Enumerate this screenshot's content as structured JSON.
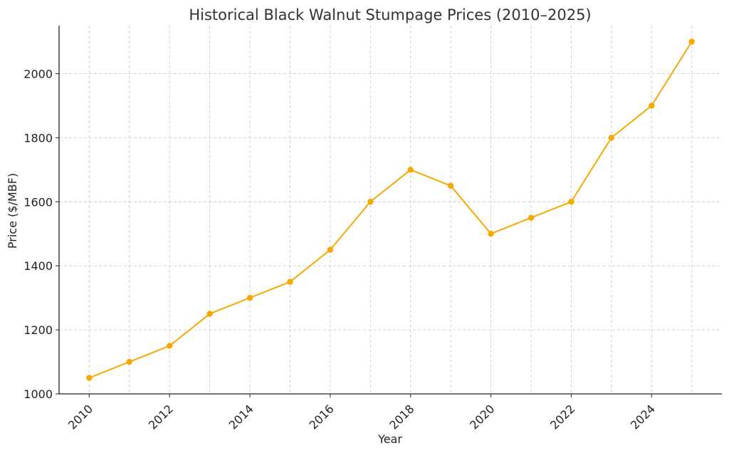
{
  "chart_data": {
    "type": "line",
    "title": "Historical Black Walnut Stumpage Prices (2010–2025)",
    "xlabel": "Year",
    "ylabel": "Price ($/MBF)",
    "x": [
      2010,
      2011,
      2012,
      2013,
      2014,
      2015,
      2016,
      2017,
      2018,
      2019,
      2020,
      2021,
      2022,
      2023,
      2024,
      2025
    ],
    "series": [
      {
        "values": [
          1050,
          1100,
          1150,
          1250,
          1300,
          1350,
          1450,
          1600,
          1700,
          1650,
          1500,
          1550,
          1600,
          1800,
          1900,
          2100
        ],
        "color": "#f5a800"
      }
    ],
    "xticks": [
      "2010",
      "2012",
      "2014",
      "2016",
      "2018",
      "2020",
      "2022",
      "2024"
    ],
    "yticks": [
      "1000",
      "1200",
      "1400",
      "1600",
      "1800",
      "2000"
    ],
    "xlim": [
      2009.25,
      2025.75
    ],
    "ylim": [
      1000,
      2150
    ],
    "grid": true,
    "legend": "none"
  }
}
